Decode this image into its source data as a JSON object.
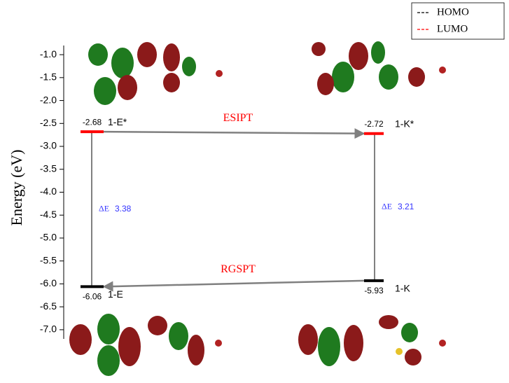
{
  "chart_data": {
    "type": "energy-level",
    "ylabel": "Energy (eV)",
    "ylim": [
      -7.2,
      -0.8
    ],
    "yticks": [
      {
        "value": -1.0,
        "label": "-1.0"
      },
      {
        "value": -1.5,
        "label": "-1.5"
      },
      {
        "value": -2.0,
        "label": "-2.0"
      },
      {
        "value": -2.5,
        "label": "-2.5"
      },
      {
        "value": -3.0,
        "label": "-3.0"
      },
      {
        "value": -3.5,
        "label": "-3.5"
      },
      {
        "value": -4.0,
        "label": "-4.0"
      },
      {
        "value": -4.5,
        "label": "-4.5"
      },
      {
        "value": -5.0,
        "label": "-5.0"
      },
      {
        "value": -5.5,
        "label": "-5.5"
      },
      {
        "value": -6.0,
        "label": "-6.0"
      },
      {
        "value": -6.5,
        "label": "-6.5"
      },
      {
        "value": -7.0,
        "label": "-7.0"
      }
    ],
    "legend": "upper right",
    "series": [
      {
        "name": "HOMO",
        "color": "#000000"
      },
      {
        "name": "LUMO",
        "color": "#ff0000"
      }
    ],
    "levels": [
      {
        "name": "1-E*",
        "value": -2.68,
        "series": 1
      },
      {
        "name": "1-K*",
        "value": -2.72,
        "series": 1
      },
      {
        "name": "1-E",
        "value": -6.06,
        "series": 0
      },
      {
        "name": "1-K",
        "value": -5.93,
        "series": 0
      }
    ],
    "gaps": [
      {
        "label": "ΔE",
        "value": 3.38
      },
      {
        "label": "ΔE",
        "value": 3.21
      }
    ],
    "transitions": [
      {
        "label": "ESIPT"
      },
      {
        "label": "RGSPT"
      }
    ]
  }
}
